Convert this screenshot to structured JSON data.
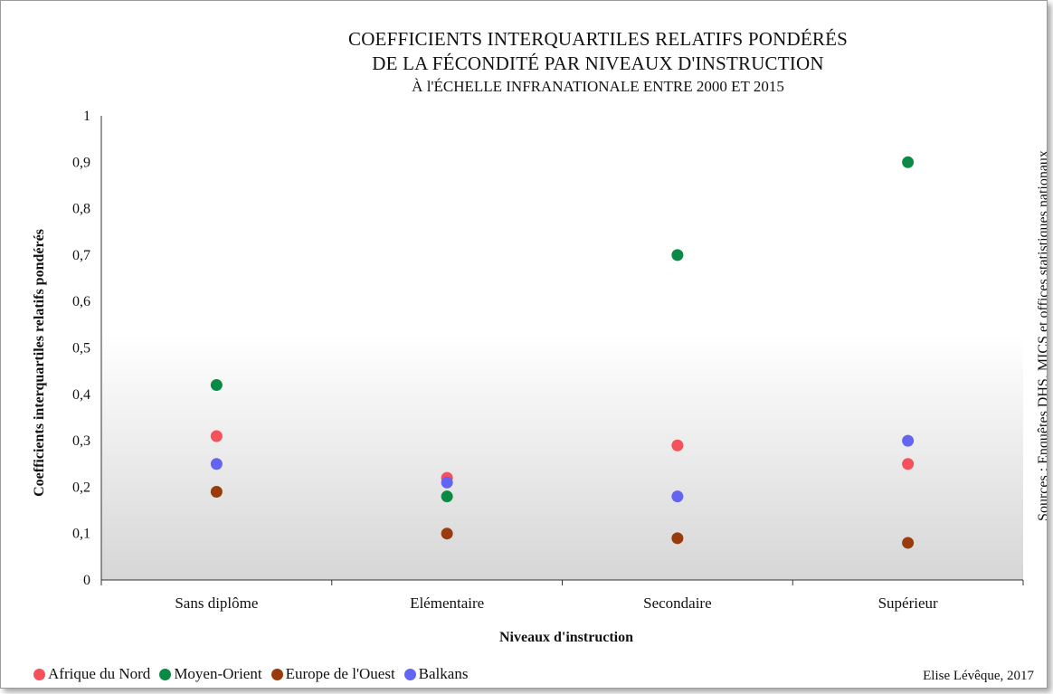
{
  "chart_data": {
    "type": "scatter",
    "title_lines": [
      "COEFFICIENTS INTERQUARTILES RELATIFS PONDÉRÉS",
      "DE LA FÉCONDITÉ PAR NIVEAUX D'INSTRUCTION"
    ],
    "subtitle": "À l'ÉCHELLE INFRANATIONALE ENTRE 2000 ET 2015",
    "xlabel": "Niveaux d'instruction",
    "ylabel": "Coefficients interquartiles relatifs pondérés",
    "categories": [
      "Sans diplôme",
      "Elémentaire",
      "Secondaire",
      "Supérieur"
    ],
    "ylim": [
      0,
      1
    ],
    "yticks": [
      "0",
      "0,1",
      "0,2",
      "0,3",
      "0,4",
      "0,5",
      "0,6",
      "0,7",
      "0,8",
      "0,9",
      "1"
    ],
    "series": [
      {
        "name": "Afrique du Nord",
        "color": "#f4515a",
        "values": [
          0.31,
          0.22,
          0.29,
          0.25
        ]
      },
      {
        "name": "Moyen-Orient",
        "color": "#0b8a45",
        "values": [
          0.42,
          0.18,
          0.7,
          0.9
        ]
      },
      {
        "name": "Europe de l'Ouest",
        "color": "#993b0d",
        "values": [
          0.19,
          0.1,
          0.09,
          0.08
        ]
      },
      {
        "name": "Balkans",
        "color": "#6464f3",
        "values": [
          0.25,
          0.21,
          0.18,
          0.3
        ]
      }
    ],
    "grid": false,
    "legend": "bottom-left"
  },
  "source_text": "Sources : Enquêtes DHS, MICS et offices statistiques nationaux",
  "credit": "Elise Lévêque, 2017"
}
